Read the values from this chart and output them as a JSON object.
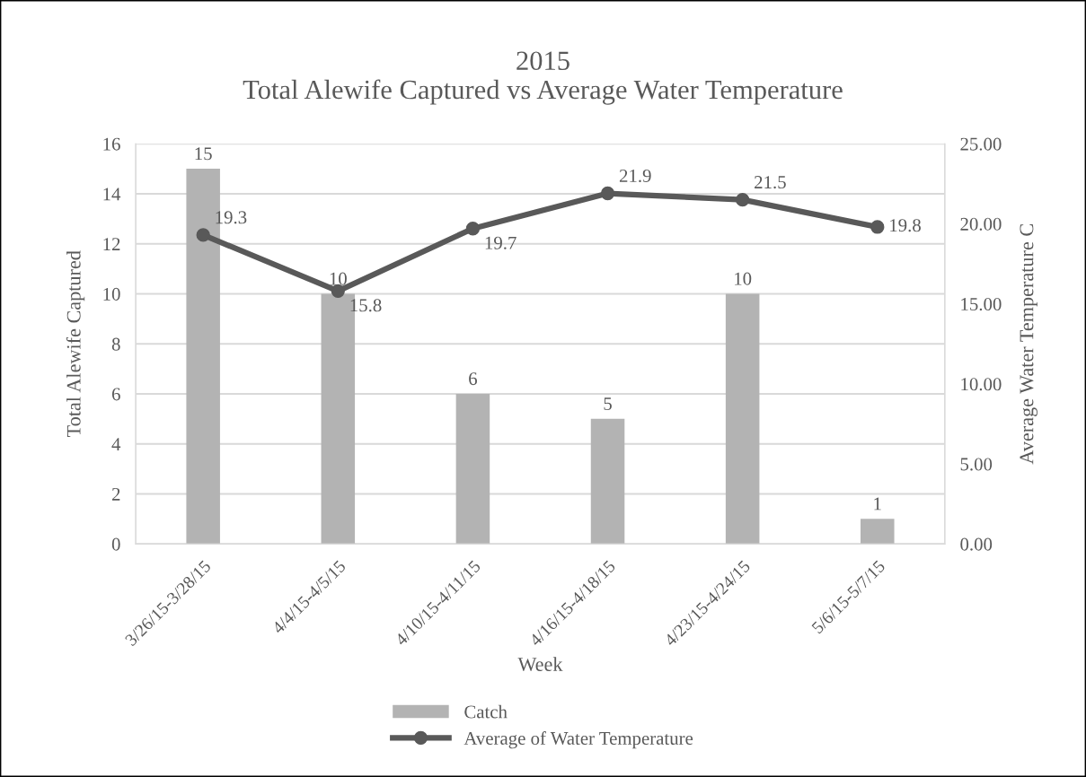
{
  "chart_data": {
    "type": "bar",
    "title": "2015",
    "subtitle": "Total Alewife Captured vs Average Water Temperature",
    "xlabel": "Week",
    "ylabel": "Total Alewife Captured",
    "y2label": "Average Water Temperature C",
    "categories": [
      "3/26/15-3/28/15",
      "4/4/15-4/5/15",
      "4/10/15-4/11/15",
      "4/16/15-4/18/15",
      "4/23/15-4/24/15",
      "5/6/15-5/7/15"
    ],
    "series": [
      {
        "name": "Catch",
        "color": "#b3b3b3",
        "values": [
          15,
          10,
          6,
          5,
          10,
          1
        ]
      },
      {
        "name": "Average of Water Temperature",
        "type": "line",
        "axis": "y2",
        "color": "#595959",
        "marker": "circle",
        "line_style": "solid",
        "values": [
          19.3,
          15.8,
          19.7,
          21.9,
          21.5,
          19.8
        ]
      }
    ],
    "ylim": [
      0,
      16
    ],
    "yticks": [
      0,
      2,
      4,
      6,
      8,
      10,
      12,
      14,
      16
    ],
    "y2lim": [
      0,
      25
    ],
    "y2ticks": [
      {
        "value": 0,
        "label": "0.00"
      },
      {
        "value": 5,
        "label": "5.00"
      },
      {
        "value": 10,
        "label": "10.00"
      },
      {
        "value": 15,
        "label": "15.00"
      },
      {
        "value": 20,
        "label": "20.00"
      },
      {
        "value": 25,
        "label": "25.00"
      }
    ],
    "grid": "y",
    "legend": "bottom",
    "data_labels": true
  }
}
